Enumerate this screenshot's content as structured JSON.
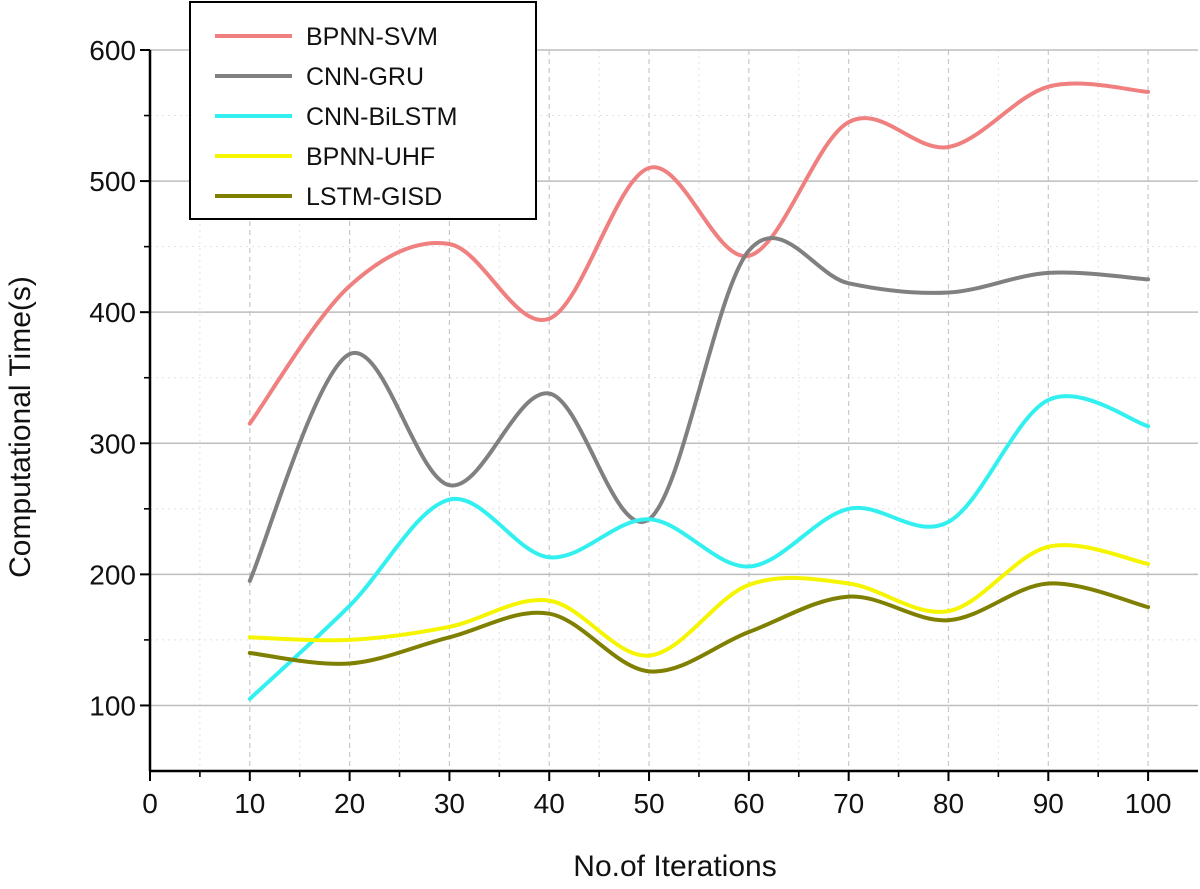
{
  "chart_data": {
    "type": "line",
    "xlabel": "No.of Iterations",
    "ylabel": "Computational Time(s)",
    "xlim": [
      0,
      105
    ],
    "ylim": [
      50,
      600
    ],
    "x_ticks": [
      0,
      10,
      20,
      30,
      40,
      50,
      60,
      70,
      80,
      90,
      100
    ],
    "y_ticks": [
      100,
      200,
      300,
      400,
      500,
      600
    ],
    "grid": true,
    "legend_position": "top-left",
    "x": [
      10,
      20,
      30,
      40,
      50,
      60,
      70,
      80,
      90,
      100
    ],
    "series": [
      {
        "name": "BPNN-SVM",
        "color": "#f08080",
        "values": [
          315,
          420,
          452,
          395,
          510,
          443,
          545,
          526,
          572,
          568
        ]
      },
      {
        "name": "CNN-GRU",
        "color": "#808080",
        "values": [
          195,
          368,
          268,
          338,
          242,
          447,
          422,
          415,
          430,
          425
        ]
      },
      {
        "name": "CNN-BiLSTM",
        "color": "#33f0f0",
        "values": [
          105,
          176,
          257,
          213,
          242,
          206,
          250,
          240,
          333,
          313
        ]
      },
      {
        "name": "BPNN-UHF",
        "color": "#f5f500",
        "values": [
          152,
          150,
          160,
          180,
          138,
          192,
          193,
          172,
          221,
          208
        ]
      },
      {
        "name": "LSTM-GISD",
        "color": "#808000",
        "values": [
          140,
          132,
          152,
          170,
          126,
          156,
          183,
          165,
          193,
          175
        ]
      }
    ]
  }
}
